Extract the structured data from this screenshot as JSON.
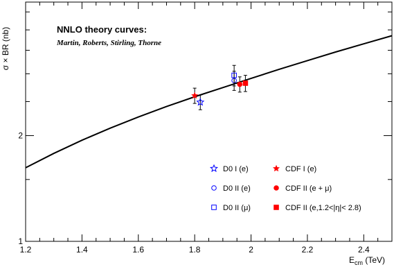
{
  "chart_data": {
    "type": "scatter",
    "title": "",
    "ylabel": "σ × BR (nb)",
    "xlabel": "E",
    "xlabel_sub": "cm",
    "xlabel_unit": " (TeV)",
    "xlim": [
      1.2,
      2.5
    ],
    "ylim": [
      1,
      4.8
    ],
    "y_scale": "log",
    "x_ticks": [
      1.2,
      1.4,
      1.6,
      1.8,
      2.0,
      2.2,
      2.4
    ],
    "x_tick_labels": [
      "1.2",
      "1.4",
      "1.6",
      "1.8",
      "2",
      "2.2",
      "2.4"
    ],
    "y_ticks": [
      1,
      2
    ],
    "y_tick_labels": [
      "1",
      "2"
    ],
    "grid": false,
    "annotation": {
      "title": "NNLO theory curves:",
      "subtitle": "Martin, Roberts, Stirling, Thorne"
    },
    "theory_curve": {
      "x": [
        1.2,
        1.3,
        1.4,
        1.5,
        1.6,
        1.7,
        1.8,
        1.9,
        2.0,
        2.1,
        2.2,
        2.3,
        2.4,
        2.5
      ],
      "y": [
        1.62,
        1.78,
        1.94,
        2.1,
        2.26,
        2.42,
        2.58,
        2.74,
        2.91,
        3.09,
        3.27,
        3.46,
        3.65,
        3.85
      ]
    },
    "series": [
      {
        "name": "D0 I (e)",
        "marker": "star-open",
        "color": "#0000ff",
        "x": [
          1.82
        ],
        "y": [
          2.49
        ],
        "err": [
          0.12
        ]
      },
      {
        "name": "CDF I (e)",
        "marker": "star-filled",
        "color": "#ff0000",
        "x": [
          1.8
        ],
        "y": [
          2.6
        ],
        "err": [
          0.13
        ]
      },
      {
        "name": "D0 II (e)",
        "marker": "circle-open",
        "color": "#0000ff",
        "x": [
          1.94
        ],
        "y": [
          2.87
        ],
        "err": [
          0.18
        ]
      },
      {
        "name": "CDF II (e + μ)",
        "marker": "circle-filled",
        "color": "#ff0000",
        "x": [
          1.96
        ],
        "y": [
          2.8
        ],
        "err": [
          0.14
        ]
      },
      {
        "name": "D0 II (μ)",
        "marker": "square-open",
        "color": "#0000ff",
        "x": [
          1.94
        ],
        "y": [
          2.97
        ],
        "err": [
          0.2
        ]
      },
      {
        "name": "CDF II (e,1.2<|η|< 2.8)",
        "marker": "square-filled",
        "color": "#ff0000",
        "x": [
          1.98
        ],
        "y": [
          2.82
        ],
        "err": [
          0.15
        ]
      }
    ],
    "legend_order": [
      0,
      1,
      2,
      3,
      4,
      5
    ],
    "legend_position": "bottom-right"
  }
}
